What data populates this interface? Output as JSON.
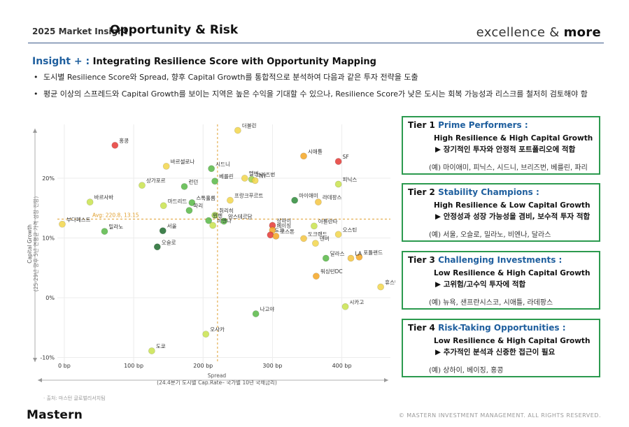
{
  "header": {
    "eyebrow": "2025 Market Insight",
    "title": "Opportunity & Risk",
    "tagline_light": "excellence & ",
    "tagline_bold": "more"
  },
  "insight": {
    "lead": "Insight + :",
    "title": " Integrating Resilience Score with Opportunity Mapping",
    "bullets": [
      "도시별 Resilience Score와 Spread, 향후 Capital Growth를 통합적으로 분석하여 다음과 같은 투자 전략을 도출",
      "평균 이상의 스프레드와 Capital Growth를 보이는 지역은 높은 수익을 기대할 수 있으나, Resilience Score가 낮은 도시는 회복 가능성과 리스크를 철저히 검토해야 함"
    ]
  },
  "source": "· 출처: 마스턴 글로벌리서치팀",
  "tiers": [
    {
      "num": "Tier 1",
      "name": "Prime Performers :",
      "subtitle": "High Resilience & High Capital Growth",
      "strategy": "▶ 장기적인 투자와 안정적 포트폴리오에 적합",
      "examples": "(예) 마이애미, 피닉스, 시드니, 브리즈번, 베를린, 파리"
    },
    {
      "num": "Tier 2",
      "name": "Stability Champions :",
      "subtitle": "High Resilience & Low Capital Growth",
      "strategy": "▶ 안정성과 성장 가능성을 겸비, 보수적 투자 적합",
      "examples": "(예) 서울, 오슬로, 밀라노, 비엔나, 달라스"
    },
    {
      "num": "Tier 3",
      "name": "Challenging Investments :",
      "subtitle": "Low Resilience & High Capital Growth",
      "strategy": "▶ 고위험/고수익 투자에 적합",
      "examples": "(예) 뉴욕, 샌프란시스코, 시애틀, 라데팡스"
    },
    {
      "num": "Tier 4",
      "name": "Risk-Taking Opportunities :",
      "subtitle": "Low Resilience & High Capital Growth",
      "strategy": "▶ 추가적인 분석과 신중한 접근이 필요",
      "examples": "(예) 상하이, 베이징, 홍콩"
    }
  ],
  "footer": {
    "logo": "Mastern",
    "copyright": "© MASTERN INVESTMENT MANAGEMENT. ALL RIGHTS RESERVED."
  },
  "colors": {
    "accent_blue": "#1f5f9e",
    "tier_border": "#2c9a4f",
    "avg_line": "#e0a030"
  },
  "chart_data": {
    "type": "scatter",
    "xlabel": "Spread",
    "xlabel2": "(24.4분기 도시별 Cap.Rate– 국가별 10년 국채금리)",
    "ylabel": "Capital Growth",
    "ylabel2": "(25-29년 향후 5년 연평균 가격 성장 전망)",
    "xlim": [
      -10,
      470
    ],
    "ylim": [
      -11,
      29
    ],
    "xticks": [
      0,
      100,
      200,
      300,
      400
    ],
    "xtick_labels": [
      "0 bp",
      "100 bp",
      "200 bp",
      "300 bp",
      "400 bp"
    ],
    "yticks": [
      -10,
      0,
      10,
      20
    ],
    "ytick_labels": [
      "-10%",
      "0%",
      "10%",
      "20%"
    ],
    "avg": {
      "x": 220.8,
      "y": 13.15,
      "label": "Avg: 220.8, 13.15"
    },
    "grid": true,
    "points": [
      {
        "name": "더블린",
        "x": 250,
        "y": 28.0,
        "color": "#f2d64b"
      },
      {
        "name": "홍콩",
        "x": 73,
        "y": 25.5,
        "color": "#e53935"
      },
      {
        "name": "시애틀",
        "x": 345,
        "y": 23.7,
        "color": "#f5a623"
      },
      {
        "name": "SF",
        "x": 395,
        "y": 22.8,
        "color": "#e53935"
      },
      {
        "name": "바르셀로나",
        "x": 147,
        "y": 22.0,
        "color": "#f2d64b"
      },
      {
        "name": "시드니",
        "x": 212,
        "y": 21.6,
        "color": "#58b947"
      },
      {
        "name": "멜번",
        "x": 260,
        "y": 20.0,
        "color": "#f2d64b"
      },
      {
        "name": "브리즈번",
        "x": 270,
        "y": 19.8,
        "color": "#9dd04a"
      },
      {
        "name": "NY",
        "x": 275,
        "y": 19.6,
        "color": "#f2d64b"
      },
      {
        "name": "상가포르",
        "x": 112,
        "y": 18.8,
        "color": "#c9e34d"
      },
      {
        "name": "런던",
        "x": 173,
        "y": 18.6,
        "color": "#58b947"
      },
      {
        "name": "베를린",
        "x": 217,
        "y": 19.5,
        "color": "#58b947"
      },
      {
        "name": "피닉스",
        "x": 395,
        "y": 19.0,
        "color": "#c9e34d"
      },
      {
        "name": "마이애미",
        "x": 332,
        "y": 16.3,
        "color": "#2e8b3a"
      },
      {
        "name": "바르사바",
        "x": 37,
        "y": 16.0,
        "color": "#c9e34d"
      },
      {
        "name": "스톡홀름",
        "x": 184,
        "y": 15.9,
        "color": "#58b947"
      },
      {
        "name": "프랑크푸르트",
        "x": 239,
        "y": 16.3,
        "color": "#f2d64b"
      },
      {
        "name": "라데팡스",
        "x": 366,
        "y": 16.0,
        "color": "#f5c542"
      },
      {
        "name": "마드리드",
        "x": 143,
        "y": 15.4,
        "color": "#c9e34d"
      },
      {
        "name": "파리",
        "x": 180,
        "y": 14.6,
        "color": "#58b947"
      },
      {
        "name": "뮌헨",
        "x": 208,
        "y": 12.9,
        "color": "#58b947"
      },
      {
        "name": "부다페스트",
        "x": -3,
        "y": 12.3,
        "color": "#f2d64b"
      },
      {
        "name": "취리히",
        "x": 217,
        "y": 13.8,
        "color": "#9dd04a"
      },
      {
        "name": "암스테르담",
        "x": 230,
        "y": 12.8,
        "color": "#58b947"
      },
      {
        "name": "비엔나",
        "x": 214,
        "y": 12.1,
        "color": "#c9e34d"
      },
      {
        "name": "밀라노",
        "x": 58,
        "y": 11.1,
        "color": "#58b947"
      },
      {
        "name": "서울",
        "x": 142,
        "y": 11.2,
        "color": "#1e6b2e"
      },
      {
        "name": "상하이",
        "x": 300,
        "y": 12.1,
        "color": "#e53935"
      },
      {
        "name": "베이징",
        "x": 300,
        "y": 11.3,
        "color": "#f5a623"
      },
      {
        "name": "아틀란타",
        "x": 360,
        "y": 12.0,
        "color": "#c9e34d"
      },
      {
        "name": "도쿄",
        "x": 297,
        "y": 10.5,
        "color": "#e53935"
      },
      {
        "name": "보스톤",
        "x": 305,
        "y": 10.3,
        "color": "#f5a623"
      },
      {
        "name": "도크랜드",
        "x": 345,
        "y": 9.9,
        "color": "#f5c542"
      },
      {
        "name": "오스틴",
        "x": 395,
        "y": 10.6,
        "color": "#f2d64b"
      },
      {
        "name": "덴버",
        "x": 362,
        "y": 9.1,
        "color": "#f2d64b"
      },
      {
        "name": "오슬로",
        "x": 134,
        "y": 8.5,
        "color": "#1e6b2e"
      },
      {
        "name": "달라스",
        "x": 377,
        "y": 6.6,
        "color": "#58b947"
      },
      {
        "name": "포틀랜드",
        "x": 425,
        "y": 6.8,
        "color": "#f5a623"
      },
      {
        "name": "LA",
        "x": 413,
        "y": 6.6,
        "color": "#f5c542"
      },
      {
        "name": "워싱턴DC",
        "x": 363,
        "y": 3.6,
        "color": "#f5a623"
      },
      {
        "name": "휴스턴",
        "x": 456,
        "y": 1.8,
        "color": "#f2d64b"
      },
      {
        "name": "시카고",
        "x": 405,
        "y": -1.5,
        "color": "#c9e34d"
      },
      {
        "name": "나고야",
        "x": 276,
        "y": -2.7,
        "color": "#58b947"
      },
      {
        "name": "오사카",
        "x": 204,
        "y": -6.1,
        "color": "#c9e34d"
      },
      {
        "name": "도쿄 ",
        "x": 126,
        "y": -8.9,
        "color": "#c9e34d"
      }
    ]
  }
}
